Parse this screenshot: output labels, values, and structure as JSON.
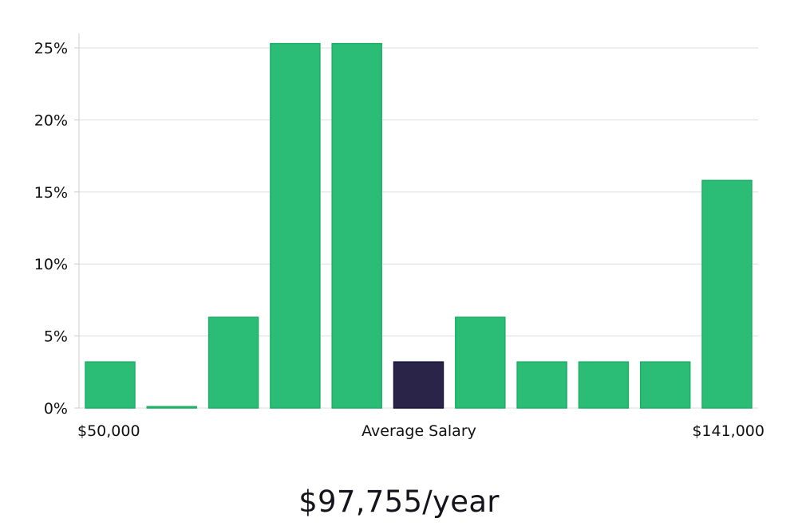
{
  "chart_data": {
    "type": "bar",
    "ylabel": "",
    "xlabel": "Average Salary",
    "x_start_label": "$50,000",
    "x_end_label": "$141,000",
    "ylim": [
      0,
      26
    ],
    "y_ticks": [
      0,
      5,
      10,
      15,
      20,
      25
    ],
    "y_tick_format": "%",
    "values": [
      3.2,
      0.1,
      6.3,
      25.3,
      25.3,
      3.2,
      6.3,
      3.2,
      3.2,
      3.2,
      15.8
    ],
    "highlight_index": 5,
    "grid": true,
    "colors": {
      "bar": "#2bbd76",
      "bar_stroke": "#1fae68",
      "highlight": "#2a2548",
      "highlight_stroke": "#18163a",
      "grid": "#dddddd",
      "axis": "#cccccc"
    }
  },
  "salary_text": "$97,755/year"
}
